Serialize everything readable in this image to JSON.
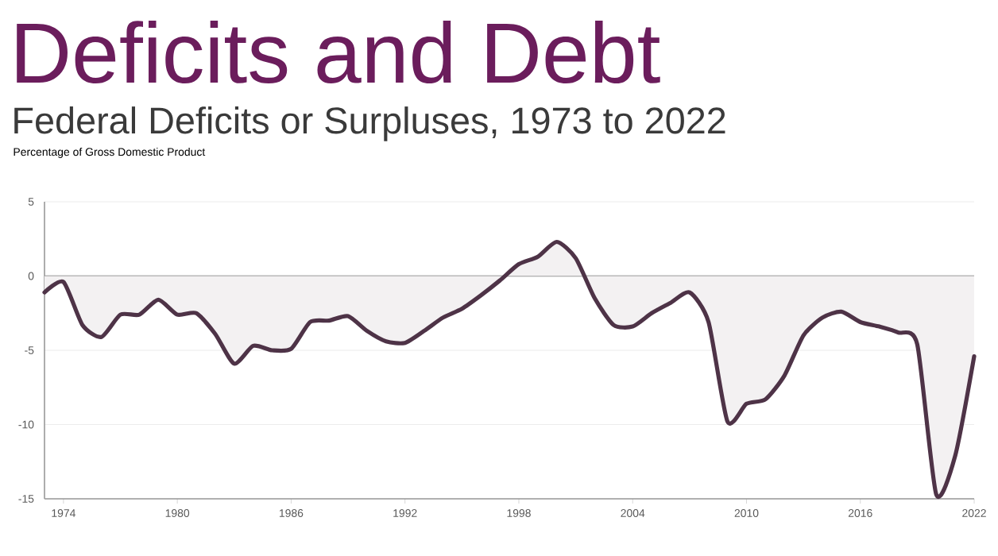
{
  "chart_data": {
    "type": "area",
    "title": "Deficits and Debt",
    "subtitle": "Federal Deficits or Surpluses, 1973 to 2022",
    "ylabel": "Percentage of Gross Domestic Product",
    "x": [
      1973,
      1974,
      1975,
      1976,
      1977,
      1978,
      1979,
      1980,
      1981,
      1982,
      1983,
      1984,
      1985,
      1986,
      1987,
      1988,
      1989,
      1990,
      1991,
      1992,
      1993,
      1994,
      1995,
      1996,
      1997,
      1998,
      1999,
      2000,
      2001,
      2002,
      2003,
      2004,
      2005,
      2006,
      2007,
      2008,
      2009,
      2010,
      2011,
      2012,
      2013,
      2014,
      2015,
      2016,
      2017,
      2018,
      2019,
      2020,
      2021,
      2022
    ],
    "series": [
      {
        "color": "#4e3347",
        "values": [
          -1.1,
          -0.4,
          -3.3,
          -4.1,
          -2.6,
          -2.6,
          -1.6,
          -2.6,
          -2.5,
          -3.9,
          -5.9,
          -4.7,
          -5.0,
          -4.9,
          -3.1,
          -3.0,
          -2.7,
          -3.7,
          -4.4,
          -4.5,
          -3.7,
          -2.8,
          -2.2,
          -1.3,
          -0.3,
          0.8,
          1.3,
          2.3,
          1.2,
          -1.5,
          -3.3,
          -3.4,
          -2.5,
          -1.8,
          -1.1,
          -3.1,
          -9.8,
          -8.6,
          -8.3,
          -6.7,
          -4.0,
          -2.8,
          -2.4,
          -3.1,
          -3.4,
          -3.8,
          -4.6,
          -14.7,
          -12.1,
          -5.4
        ]
      }
    ],
    "xlim": [
      1973,
      2022
    ],
    "ylim": [
      -15,
      5
    ],
    "xticks": [
      1974,
      1980,
      1986,
      1992,
      1998,
      2004,
      2010,
      2016,
      2022
    ],
    "yticks": [
      -15,
      -10,
      -5,
      0,
      5
    ],
    "grid": "y",
    "ref_lines": [
      {
        "axis": "y",
        "value": 0,
        "color": "#7a7a7a"
      }
    ]
  }
}
